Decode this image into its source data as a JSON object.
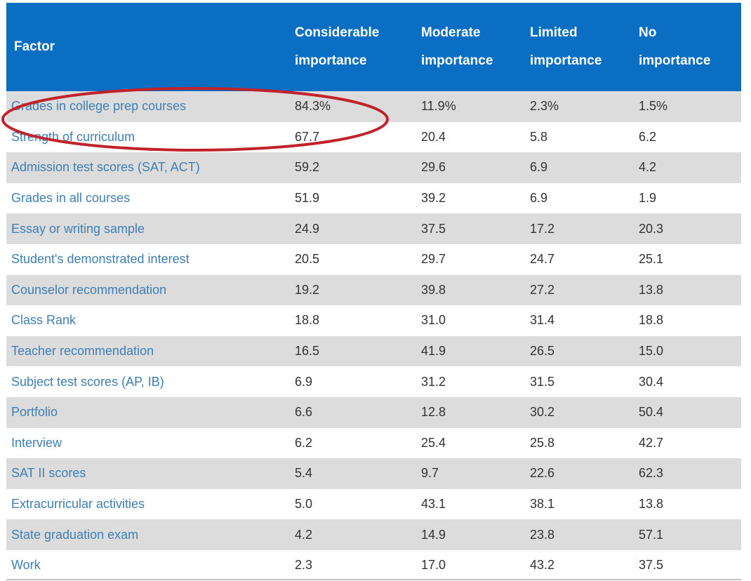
{
  "table": {
    "headers": [
      {
        "line1": "Factor",
        "line2": ""
      },
      {
        "line1": "Considerable",
        "line2": "importance"
      },
      {
        "line1": "Moderate",
        "line2": "importance"
      },
      {
        "line1": "Limited",
        "line2": "importance"
      },
      {
        "line1": "No",
        "line2": "importance"
      }
    ],
    "rows": [
      [
        "Grades in college prep courses",
        "84.3%",
        "11.9%",
        "2.3%",
        "1.5%"
      ],
      [
        "Strength of curriculum",
        "67.7",
        "20.4",
        "5.8",
        "6.2"
      ],
      [
        "Admission test scores (SAT, ACT)",
        "59.2",
        "29.6",
        "6.9",
        "4.2"
      ],
      [
        "Grades in all courses",
        "51.9",
        "39.2",
        "6.9",
        "1.9"
      ],
      [
        "Essay or writing sample",
        "24.9",
        "37.5",
        "17.2",
        "20.3"
      ],
      [
        "Student's demonstrated interest",
        "20.5",
        "29.7",
        "24.7",
        "25.1"
      ],
      [
        "Counselor recommendation",
        "19.2",
        "39.8",
        "27.2",
        "13.8"
      ],
      [
        "Class Rank",
        "18.8",
        "31.0",
        "31.4",
        "18.8"
      ],
      [
        "Teacher recommendation",
        "16.5",
        "41.9",
        "26.5",
        "15.0"
      ],
      [
        "Subject test scores (AP, IB)",
        "6.9",
        "31.2",
        "31.5",
        "30.4"
      ],
      [
        "Portfolio",
        "6.6",
        "12.8",
        "30.2",
        "50.4"
      ],
      [
        "Interview",
        "6.2",
        "25.4",
        "25.8",
        "42.7"
      ],
      [
        "SAT II scores",
        "5.4",
        "9.7",
        "22.6",
        "62.3"
      ],
      [
        "Extracurricular activities",
        "5.0",
        "43.1",
        "38.1",
        "13.8"
      ],
      [
        "State graduation exam",
        "4.2",
        "14.9",
        "23.8",
        "57.1"
      ],
      [
        "Work",
        "2.3",
        "17.0",
        "43.2",
        "37.5"
      ]
    ]
  },
  "colors": {
    "header_bg": "#0a6fc2",
    "stripe_bg": "#dcdcdc",
    "factor_text": "#3f7fb5",
    "highlight_ellipse": "#c0232b"
  }
}
